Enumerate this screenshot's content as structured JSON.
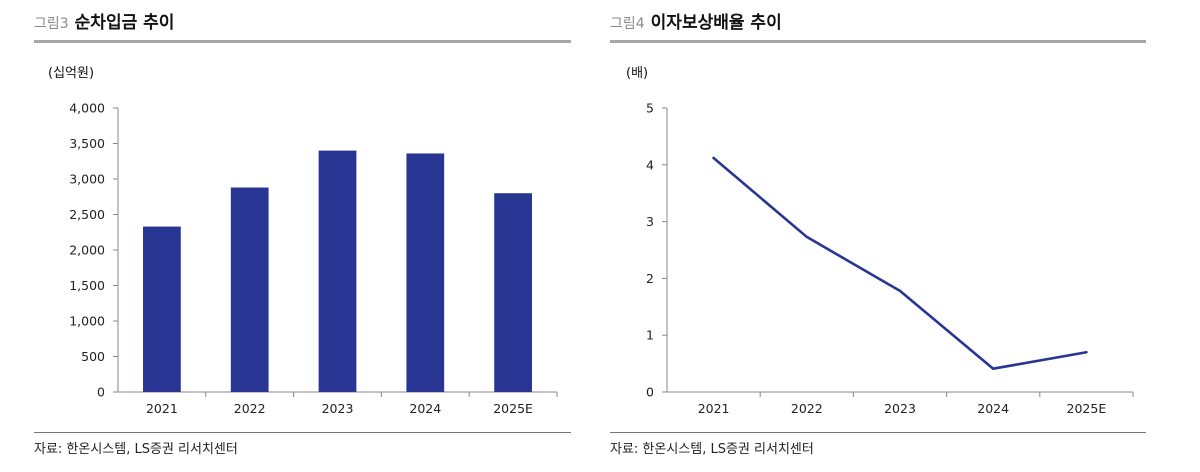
{
  "colors": {
    "series": "#283593",
    "axis": "#888888",
    "title_rule": "#a6a6a6"
  },
  "left": {
    "fig_num": "그림3",
    "title": "순차입금 추이",
    "unit": "(십억원)",
    "source": "자료: 한온시스템, LS증권 리서치센터"
  },
  "right": {
    "fig_num": "그림4",
    "title": "이자보상배율 추이",
    "unit": "(배)",
    "source": "자료: 한온시스템, LS증권 리서치센터"
  },
  "chart_data": [
    {
      "type": "bar",
      "title": "순차입금 추이",
      "ylabel": "(십억원)",
      "categories": [
        "2021",
        "2022",
        "2023",
        "2024",
        "2025E"
      ],
      "values": [
        2330,
        2880,
        3400,
        3360,
        2800
      ],
      "ylim": [
        0,
        4000
      ],
      "yticks": [
        0,
        500,
        1000,
        1500,
        2000,
        2500,
        3000,
        3500,
        4000
      ],
      "ytick_labels": [
        "0",
        "500",
        "1,000",
        "1,500",
        "2,000",
        "2,500",
        "3,000",
        "3,500",
        "4,000"
      ],
      "grid": false,
      "legend": "none"
    },
    {
      "type": "line",
      "title": "이자보상배율 추이",
      "ylabel": "(배)",
      "categories": [
        "2021",
        "2022",
        "2023",
        "2024",
        "2025E"
      ],
      "values": [
        4.12,
        2.73,
        1.78,
        0.41,
        0.7
      ],
      "ylim": [
        0,
        5
      ],
      "yticks": [
        0,
        1,
        2,
        3,
        4,
        5
      ],
      "ytick_labels": [
        "0",
        "1",
        "2",
        "3",
        "4",
        "5"
      ],
      "grid": false,
      "legend": "none"
    }
  ]
}
